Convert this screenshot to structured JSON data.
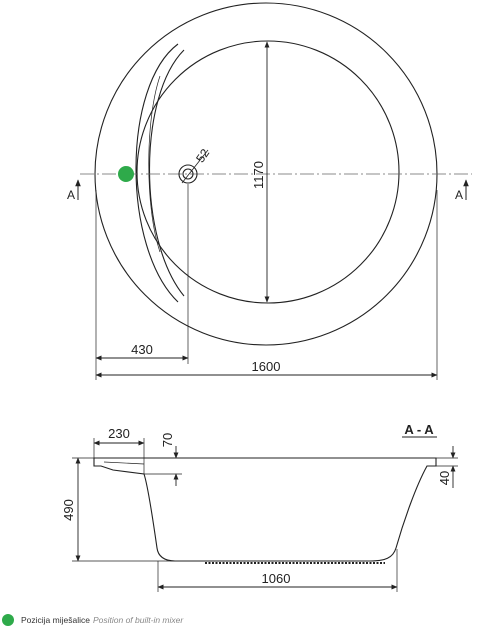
{
  "colors": {
    "mixer": "#2eaa4a",
    "line": "#222222"
  },
  "top_view": {
    "dim_diameter": "1600",
    "dim_inner": "1170",
    "dim_hole": "52",
    "dim_offset": "430",
    "section_mark_left": "A",
    "section_mark_right": "A"
  },
  "section_view": {
    "title": "A - A",
    "dim_rim": "230",
    "dim_rim_thickness": "70",
    "dim_depth": "490",
    "dim_lip": "40",
    "dim_bottom": "1060"
  },
  "legend": {
    "icon": "green-dot",
    "label": "Pozicija miješalice",
    "label_en": "Position of built-in mixer"
  }
}
